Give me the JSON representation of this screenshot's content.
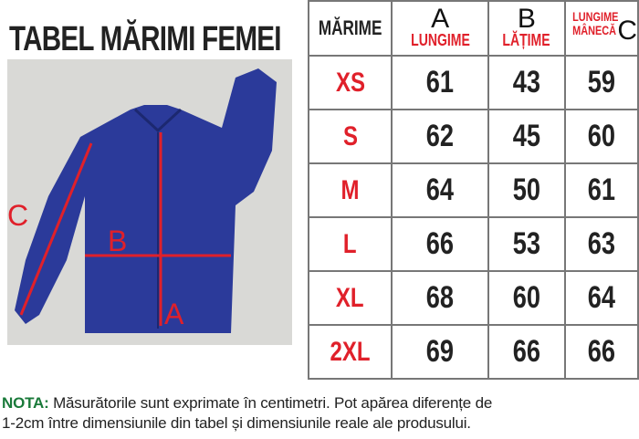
{
  "title": "TABEL MĂRIMI FEMEI",
  "photo_labels": {
    "a": "A",
    "b": "B",
    "c": "C"
  },
  "table": {
    "headers": {
      "size": "MĂRIME",
      "a": {
        "letter": "A",
        "label": "LUNGIME"
      },
      "b": {
        "letter": "B",
        "label": "LĂȚIME"
      },
      "c": {
        "letter": "C",
        "label1": "LUNGIME",
        "label2": "MÂNECĂ"
      }
    },
    "rows": [
      {
        "size": "XS",
        "a": "61",
        "b": "43",
        "c": "59"
      },
      {
        "size": "S",
        "a": "62",
        "b": "45",
        "c": "60"
      },
      {
        "size": "M",
        "a": "64",
        "b": "50",
        "c": "61"
      },
      {
        "size": "L",
        "a": "66",
        "b": "53",
        "c": "63"
      },
      {
        "size": "XL",
        "a": "68",
        "b": "60",
        "c": "64"
      },
      {
        "size": "2XL",
        "a": "69",
        "b": "66",
        "c": "66"
      }
    ]
  },
  "note": {
    "label": "NOTA:",
    "line1": " Măsurătorile sunt exprimate în centimetri. Pot apărea diferențe de",
    "line2": "1-2cm între dimensiunile din tabel și dimensiunile reale ale produsului."
  },
  "colors": {
    "accent_red": "#e0202a",
    "note_green": "#1a7a3a",
    "jacket_blue": "#2b3a9a"
  }
}
